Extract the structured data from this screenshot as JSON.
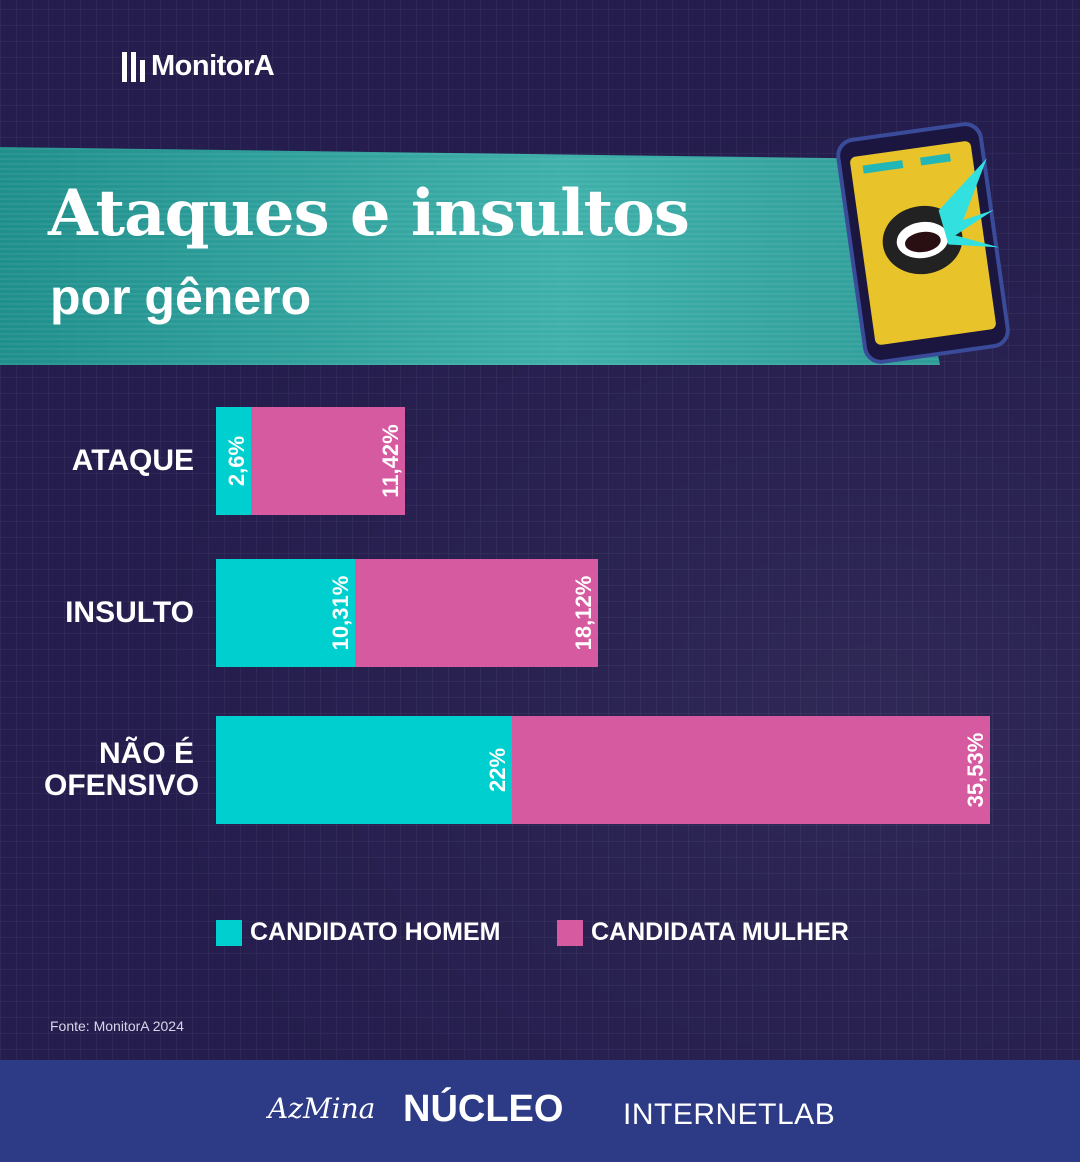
{
  "brand": {
    "logo_text": "MonitorA"
  },
  "header": {
    "title": "Ataques e insultos",
    "subtitle": "por gênero"
  },
  "chart_data": {
    "type": "bar",
    "orientation": "horizontal",
    "stacked": true,
    "categories": [
      "ATAQUE",
      "INSULTO",
      "NÃO É OFENSIVO"
    ],
    "series": [
      {
        "name": "CANDIDATO HOMEM",
        "values": [
          2.6,
          10.31,
          22
        ],
        "labels": [
          "2,6%",
          "10,31%",
          "22%"
        ],
        "color": "#00cfcf"
      },
      {
        "name": "CANDIDATA MULHER",
        "values": [
          11.42,
          18.12,
          35.53
        ],
        "labels": [
          "11,42%",
          "18,12%",
          "35,53%"
        ],
        "color": "#d65aa0"
      }
    ],
    "legend_position": "bottom",
    "grid": false
  },
  "source": "Fonte: MonitorA 2024",
  "footer": {
    "partners": [
      "AzMina",
      "NÚCLEO",
      "INTERNETLAB"
    ]
  }
}
